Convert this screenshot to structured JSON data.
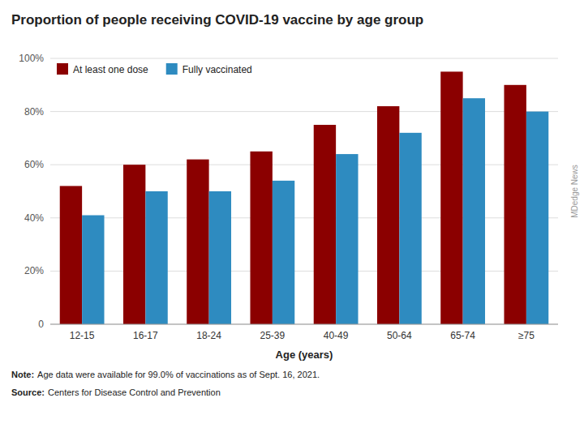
{
  "chart_data": {
    "type": "bar",
    "title": "Proportion of people receiving COVID-19 vaccine by age group",
    "categories": [
      "12-15",
      "16-17",
      "18-24",
      "25-39",
      "40-49",
      "50-64",
      "65-74",
      "≥75"
    ],
    "series": [
      {
        "name": "At least one dose",
        "color": "#8B0000",
        "values": [
          52,
          60,
          62,
          65,
          75,
          82,
          95,
          90
        ]
      },
      {
        "name": "Fully vaccinated",
        "color": "#2E8BC0",
        "values": [
          41,
          50,
          50,
          54,
          64,
          72,
          85,
          80
        ]
      }
    ],
    "xlabel": "Age (years)",
    "ylim": [
      0,
      100
    ],
    "yticks": [
      0,
      {
        "value": 20,
        "label": "20%"
      },
      {
        "value": 40,
        "label": "40%"
      },
      {
        "value": 60,
        "label": "60%"
      },
      {
        "value": 80,
        "label": "80%"
      },
      {
        "value": 100,
        "label": "100%"
      }
    ],
    "grid": true,
    "legend": "upper left",
    "annotations": [
      {
        "label": "Note:",
        "text": "Age data were available for 99.0% of vaccinations as of Sept. 16, 2021."
      },
      {
        "label": "Source:",
        "text": "Centers for Disease Control and Prevention"
      },
      {
        "text": "MDedge News"
      }
    ]
  }
}
